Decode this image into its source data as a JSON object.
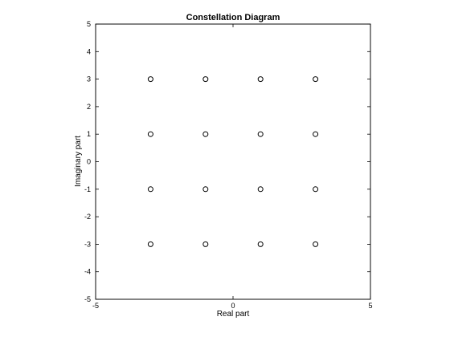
{
  "chart_data": {
    "type": "scatter",
    "title": "Constellation Diagram",
    "xlabel": "Real part",
    "ylabel": "Imaginary part",
    "xlim": [
      -5,
      5
    ],
    "ylim": [
      -5,
      5
    ],
    "xticks": [
      -5,
      0,
      5
    ],
    "yticks": [
      5,
      4,
      3,
      2,
      1,
      0,
      -1,
      -2,
      -3,
      -4,
      -5
    ],
    "grid": true,
    "marker": "circle",
    "points": [
      {
        "x": -3,
        "y": 3
      },
      {
        "x": -1,
        "y": 3
      },
      {
        "x": 1,
        "y": 3
      },
      {
        "x": 3,
        "y": 3
      },
      {
        "x": -3,
        "y": 1
      },
      {
        "x": -1,
        "y": 1
      },
      {
        "x": 1,
        "y": 1
      },
      {
        "x": 3,
        "y": 1
      },
      {
        "x": -3,
        "y": -1
      },
      {
        "x": -1,
        "y": -1
      },
      {
        "x": 1,
        "y": -1
      },
      {
        "x": 3,
        "y": -1
      },
      {
        "x": -3,
        "y": -3
      },
      {
        "x": -1,
        "y": -3
      },
      {
        "x": 1,
        "y": -3
      },
      {
        "x": 3,
        "y": -3
      }
    ]
  }
}
